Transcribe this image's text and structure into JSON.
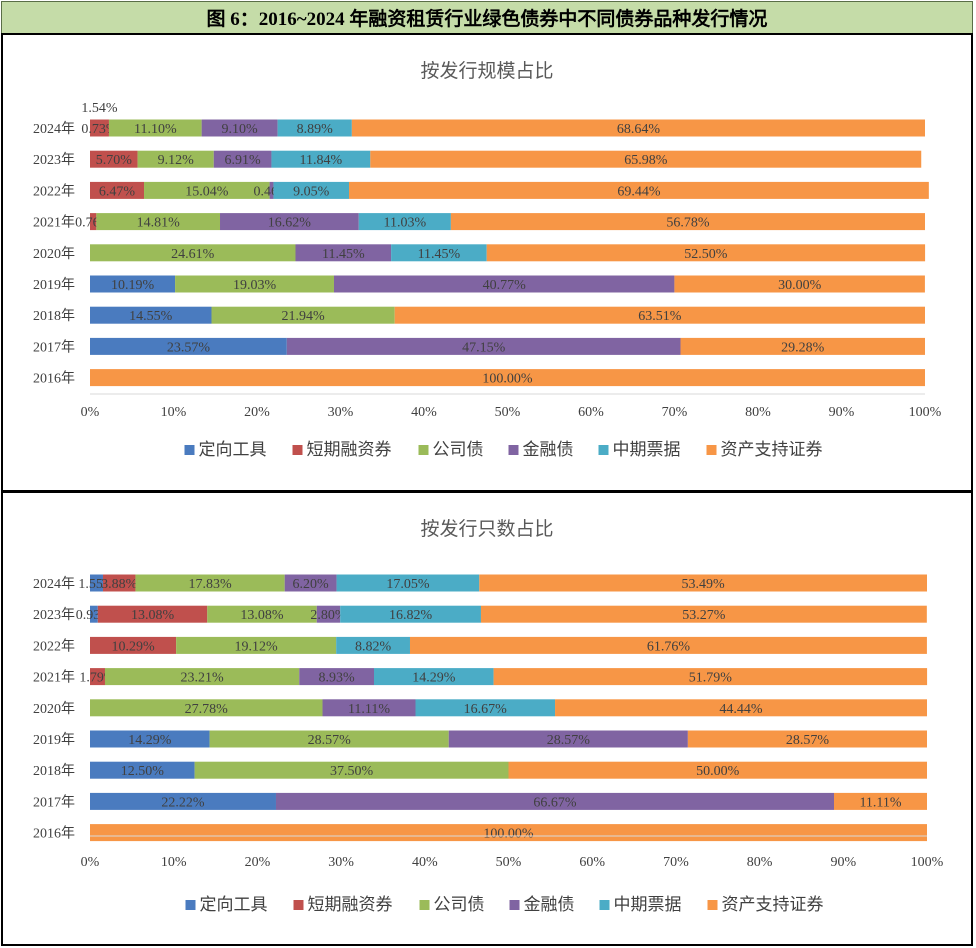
{
  "figure_title": "图 6：2016~2024 年融资租赁行业绿色债券中不同债券品种发行情况",
  "colors": {
    "定向工具": "#4a7bbf",
    "短期融资券": "#c0504d",
    "公司债": "#9bbb59",
    "金融债": "#8064a2",
    "中期票据": "#4bacc6",
    "资产支持证券": "#f79646"
  },
  "chart_data": [
    {
      "type": "bar",
      "stacked": true,
      "orientation": "horizontal",
      "title": "按发行规模占比",
      "categories": [
        "2024年",
        "2023年",
        "2022年",
        "2021年",
        "2020年",
        "2019年",
        "2018年",
        "2017年",
        "2016年"
      ],
      "series": [
        {
          "name": "定向工具",
          "values": [
            0,
            0,
            0,
            0,
            0,
            10.19,
            14.55,
            23.57,
            0
          ],
          "labels": [
            "",
            "",
            "",
            "",
            "",
            "10.19%",
            "14.55%",
            "23.57%",
            ""
          ]
        },
        {
          "name": "短期融资券",
          "values": [
            2.27,
            5.7,
            6.47,
            0.76,
            0,
            0,
            0,
            0,
            0
          ],
          "labels": [
            "0.73%|1.54%",
            "5.70%",
            "6.47%",
            "0.76%",
            "",
            "",
            "",
            "",
            ""
          ]
        },
        {
          "name": "公司债",
          "values": [
            11.1,
            9.12,
            15.04,
            14.81,
            24.61,
            19.03,
            21.94,
            0,
            0
          ],
          "labels": [
            "11.10%",
            "9.12%",
            "15.04%",
            "14.81%",
            "24.61%",
            "19.03%",
            "21.94%",
            "",
            ""
          ]
        },
        {
          "name": "金融债",
          "values": [
            9.1,
            6.91,
            0.46,
            16.62,
            11.45,
            40.77,
            0,
            47.15,
            0
          ],
          "labels": [
            "9.10%",
            "6.91%",
            "0.46%",
            "16.62%",
            "11.45%",
            "40.77%",
            "",
            "47.15%",
            ""
          ]
        },
        {
          "name": "中期票据",
          "values": [
            8.89,
            11.84,
            9.05,
            11.03,
            11.45,
            0,
            0,
            0,
            0
          ],
          "labels": [
            "8.89%",
            "11.84%",
            "9.05%",
            "11.03%",
            "11.45%",
            "",
            "",
            "",
            ""
          ]
        },
        {
          "name": "资产支持证券",
          "values": [
            68.64,
            65.98,
            69.44,
            56.78,
            52.5,
            30.0,
            63.51,
            29.28,
            100.0
          ],
          "labels": [
            "68.64%",
            "65.98%",
            "69.44%",
            "56.78%",
            "52.50%",
            "30.00%",
            "63.51%",
            "29.28%",
            "100.00%"
          ]
        }
      ],
      "xticks": [
        "0%",
        "10%",
        "20%",
        "30%",
        "40%",
        "50%",
        "60%",
        "70%",
        "80%",
        "90%",
        "100%"
      ],
      "xlim": [
        0,
        100
      ],
      "grid": false,
      "legend": "bottom"
    },
    {
      "type": "bar",
      "stacked": true,
      "orientation": "horizontal",
      "title": "按发行只数占比",
      "categories": [
        "2024年",
        "2023年",
        "2022年",
        "2021年",
        "2020年",
        "2019年",
        "2018年",
        "2017年",
        "2016年"
      ],
      "series": [
        {
          "name": "定向工具",
          "values": [
            1.55,
            0.93,
            0,
            0,
            0,
            14.29,
            12.5,
            22.22,
            0
          ],
          "labels": [
            "1.55%",
            "0.93%",
            "",
            "",
            "",
            "14.29%",
            "12.50%",
            "22.22%",
            ""
          ]
        },
        {
          "name": "短期融资券",
          "values": [
            3.88,
            13.08,
            10.29,
            1.79,
            0,
            0,
            0,
            0,
            0
          ],
          "labels": [
            "3.88%",
            "13.08%",
            "10.29%",
            "1.79%",
            "",
            "",
            "",
            "",
            ""
          ]
        },
        {
          "name": "公司债",
          "values": [
            17.83,
            13.08,
            19.12,
            23.21,
            27.78,
            28.57,
            37.5,
            0,
            0
          ],
          "labels": [
            "17.83%",
            "13.08%",
            "19.12%",
            "23.21%",
            "27.78%",
            "28.57%",
            "37.50%",
            "",
            ""
          ]
        },
        {
          "name": "金融债",
          "values": [
            6.2,
            2.8,
            0,
            8.93,
            11.11,
            28.57,
            0,
            66.67,
            0
          ],
          "labels": [
            "6.20%",
            "2.80%",
            "",
            "8.93%",
            "11.11%",
            "28.57%",
            "",
            "66.67%",
            ""
          ]
        },
        {
          "name": "中期票据",
          "values": [
            17.05,
            16.82,
            8.82,
            14.29,
            16.67,
            0,
            0,
            0,
            0
          ],
          "labels": [
            "17.05%",
            "16.82%",
            "8.82%",
            "14.29%",
            "16.67%",
            "",
            "",
            "",
            ""
          ]
        },
        {
          "name": "资产支持证券",
          "values": [
            53.49,
            53.27,
            61.76,
            51.79,
            44.44,
            28.57,
            50.0,
            11.11,
            100.0
          ],
          "labels": [
            "53.49%",
            "53.27%",
            "61.76%",
            "51.79%",
            "44.44%",
            "28.57%",
            "50.00%",
            "11.11%",
            "100.00%"
          ]
        }
      ],
      "xticks": [
        "0%",
        "10%",
        "20%",
        "30%",
        "40%",
        "50%",
        "60%",
        "70%",
        "80%",
        "90%",
        "100%"
      ],
      "xlim": [
        0,
        100
      ],
      "grid": false,
      "legend": "bottom"
    }
  ]
}
